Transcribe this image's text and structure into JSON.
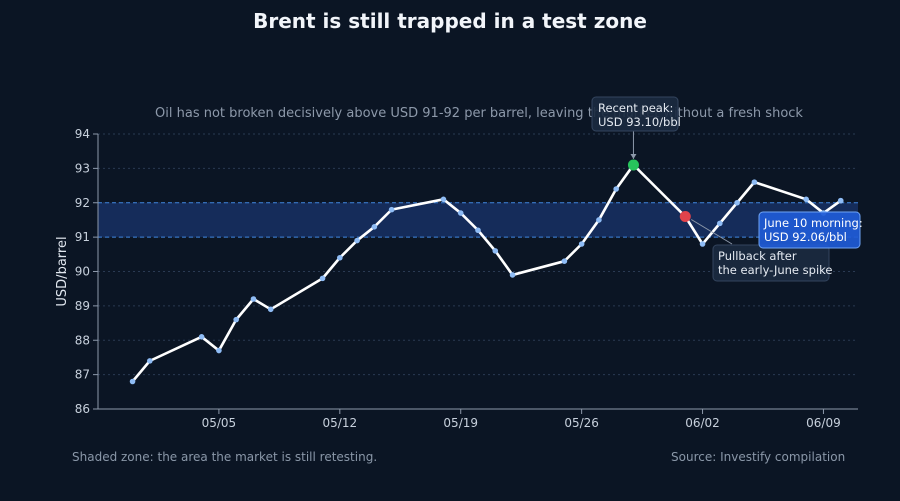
{
  "chart_data": {
    "type": "line",
    "title": "Brent is still trapped in a test zone",
    "subtitle": "Oil has not broken decisively above USD 91-92 per barrel, leaving the market without a fresh shock",
    "xlabel": "",
    "ylabel": "USD/barrel",
    "ylim": [
      86,
      94
    ],
    "yticks": [
      86,
      87,
      88,
      89,
      90,
      91,
      92,
      93,
      94
    ],
    "xticks": [
      "05/05",
      "05/12",
      "05/19",
      "05/26",
      "06/02",
      "06/09"
    ],
    "grid": true,
    "test_zone": [
      91,
      92
    ],
    "series": [
      {
        "x": [
          "2025-04-30",
          "2025-05-01",
          "2025-05-04",
          "2025-05-05",
          "2025-05-06",
          "2025-05-07",
          "2025-05-08",
          "2025-05-11",
          "2025-05-12",
          "2025-05-13",
          "2025-05-14",
          "2025-05-15",
          "2025-05-18",
          "2025-05-19",
          "2025-05-20",
          "2025-05-21",
          "2025-05-22",
          "2025-05-25",
          "2025-05-26",
          "2025-05-27",
          "2025-05-28",
          "2025-05-29",
          "2025-06-01",
          "2025-06-02",
          "2025-06-03",
          "2025-06-04",
          "2025-06-05",
          "2025-06-08",
          "2025-06-09",
          "2025-06-10"
        ],
        "values": [
          86.8,
          87.4,
          88.1,
          87.7,
          88.6,
          89.2,
          88.9,
          89.8,
          90.4,
          90.9,
          91.3,
          91.8,
          92.1,
          91.7,
          91.2,
          90.6,
          89.9,
          90.3,
          90.8,
          91.5,
          92.4,
          93.1,
          91.6,
          90.8,
          91.4,
          92.0,
          92.6,
          92.1,
          91.7,
          92.06
        ]
      }
    ],
    "annotations": {
      "peak": {
        "lines": [
          "Recent peak:",
          "USD 93.10/bbl"
        ]
      },
      "pullback": {
        "lines": [
          "Pullback after",
          "the early-June spike"
        ]
      },
      "latest": {
        "lines": [
          "June 10 morning:",
          "USD 92.06/bbl"
        ]
      }
    },
    "colors": {
      "background": "#0b1524",
      "line": "#ffffff",
      "marker": "#8fbcf5",
      "zone_fill": "#173064",
      "zone_border": "#3f86e0",
      "peak": "#27c45c",
      "pullback": "#e2434b",
      "latest_box": "#1f5bd6"
    }
  },
  "footer": {
    "note": "Shaded zone: the area the market is still retesting.",
    "source": "Source: Investify compilation"
  }
}
